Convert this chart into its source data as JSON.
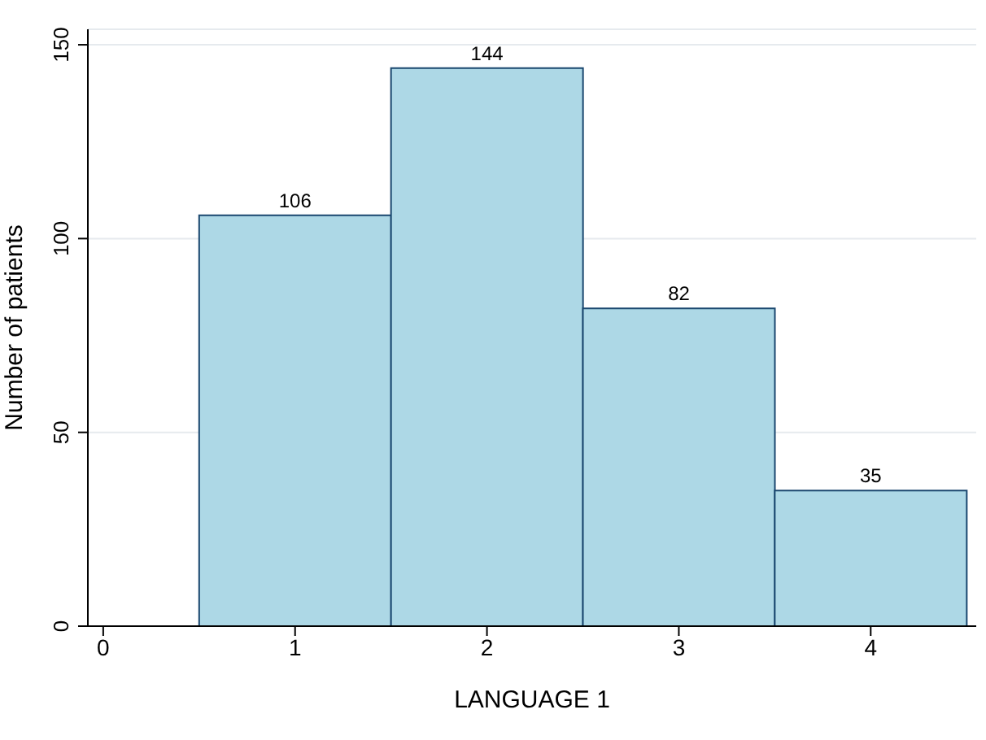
{
  "chart_data": {
    "type": "histogram",
    "xlabel": "LANGUAGE 1",
    "ylabel": "Number of patients",
    "bins": [
      0.5,
      1.5,
      2.5,
      3.5,
      4.5
    ],
    "values": [
      106,
      144,
      82,
      35
    ],
    "color": "#add8e6",
    "xlim": [
      -0.08,
      4.55
    ],
    "xticks": [
      0,
      1,
      2,
      3,
      4
    ],
    "ylim": [
      0,
      154
    ],
    "yticks": [
      0,
      50,
      100,
      150
    ],
    "grid": "y",
    "data_labels": true
  }
}
